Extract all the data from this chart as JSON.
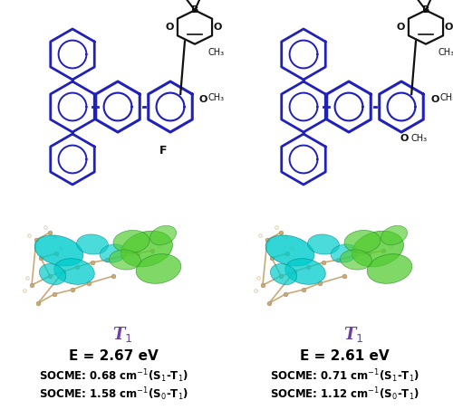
{
  "figsize": [
    5.0,
    4.63
  ],
  "dpi": 100,
  "bg_color": "#ffffff",
  "blue": "#2020bb",
  "black": "#111111",
  "purple": "#6a3faa",
  "tan": "#c8aa78",
  "cyan": "#00cccc",
  "green": "#44cc44",
  "t1_label_left": "T",
  "t1_sub_left": "1",
  "t1_label_right": "T",
  "t1_sub_right": "1",
  "left_energy": "E = 2.67 eV",
  "right_energy": "E = 2.61 eV",
  "left_socme1": "SOCME: 0.68 cm$^{-1}$(S$_1$-T$_1$)",
  "left_socme2": "SOCME: 1.58 cm$^{-1}$(S$_0$-T$_1$)",
  "right_socme1": "SOCME: 0.71 cm$^{-1}$(S$_1$-T$_1$)",
  "right_socme2": "SOCME: 1.12 cm$^{-1}$(S$_0$-T$_1$)"
}
